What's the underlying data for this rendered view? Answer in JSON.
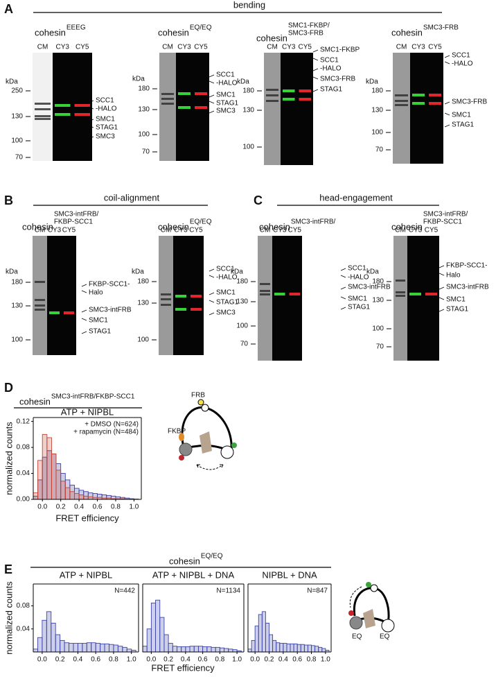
{
  "headers": [
    {
      "letter": "A",
      "heading": "bending"
    },
    {
      "letter": "B",
      "heading": "coil-alignment"
    },
    {
      "letter": "C",
      "heading": "head-engagement"
    },
    {
      "letter": "D",
      "title": {
        "base": "cohesin",
        "sup": [
          "SMC3-intFRB/FKBP-SCC1"
        ]
      }
    },
    {
      "letter": "E",
      "title": {
        "base": "cohesin",
        "sup": [
          "EQ/EQ"
        ]
      }
    }
  ],
  "gels": [
    {
      "title": {
        "base": "cohesin",
        "sup": [
          "EEEG"
        ]
      },
      "lanes": [
        "CM",
        "CY3",
        "CY5"
      ],
      "kda_label": "kDa",
      "markers": [
        250,
        130,
        100,
        70
      ],
      "bands": [
        "SCC1",
        "-HALO",
        "SMC1",
        "STAG1",
        "SMC3"
      ]
    },
    {
      "title": {
        "base": "cohesin",
        "sup": [
          "EQ/EQ"
        ]
      },
      "lanes": [
        "CM",
        "CY3",
        "CY5"
      ],
      "kda_label": "kDa",
      "markers": [
        180,
        130,
        100,
        70
      ],
      "bands": [
        "SCC1",
        "-HALO",
        "SMC1",
        "STAG1",
        "SMC3"
      ]
    },
    {
      "title": {
        "base": "cohesin",
        "sup": [
          "SMC1-FKBP/",
          "SMC3-FRB"
        ]
      },
      "lanes": [
        "CM",
        "CY3",
        "CY5"
      ],
      "kda_label": "kDa",
      "markers": [
        180,
        130,
        100
      ],
      "bands": [
        "SMC1-FKBP",
        "SCC1",
        "-HALO",
        "SMC3-FRB",
        "STAG1"
      ]
    },
    {
      "title": {
        "base": "cohesin",
        "sup": [
          "SMC3-FRB"
        ]
      },
      "lanes": [
        "CM",
        "CY3",
        "CY5"
      ],
      "kda_label": "kDa",
      "markers": [
        180,
        130,
        100,
        70
      ],
      "bands": [
        "SCC1",
        "-HALO",
        "SMC3-FRB",
        "SMC1",
        "STAG1"
      ]
    },
    {
      "title": {
        "base": "cohesin",
        "sup": [
          "SMC3-intFRB/",
          "FKBP-SCC1"
        ]
      },
      "lanes": [
        "CM",
        "CY3",
        "CY5"
      ],
      "kda_label": "kDa",
      "markers": [
        180,
        130,
        100
      ],
      "bands": [
        "FKBP-SCC1-",
        "Halo",
        "SMC3-intFRB",
        "SMC1",
        "STAG1"
      ]
    },
    {
      "title": {
        "base": "cohesin",
        "sup": [
          "EQ/EQ"
        ]
      },
      "lanes": [
        "CM",
        "CY3",
        "CY5"
      ],
      "kda_label": "kDa",
      "markers": [
        180,
        130,
        100
      ],
      "bands": [
        "SCC1",
        "-HALO",
        "SMC1",
        "STAG1",
        "SMC3"
      ]
    },
    {
      "title": {
        "base": "cohesin",
        "sup": [
          "SMC3-intFRB/"
        ]
      },
      "lanes": [
        "CM",
        "CY3",
        "CY5"
      ],
      "kda_label": "kDa",
      "markers": [
        180,
        130,
        100,
        70
      ],
      "bands": [
        "SCC1",
        "-HALO",
        "SMC3-intFRB",
        "SMC1",
        "STAG1"
      ]
    },
    {
      "title": {
        "base": "cohesin",
        "sup": [
          "SMC3-intFRB/",
          "FKBP-SCC1"
        ]
      },
      "lanes": [
        "CM",
        "CY3",
        "CY5"
      ],
      "kda_label": "kDa",
      "markers": [
        180,
        130,
        100,
        70
      ],
      "bands": [
        "FKBP-SCC1-",
        "Halo",
        "SMC3-intFRB",
        "SMC1",
        "STAG1"
      ]
    }
  ],
  "diagrams": {
    "d_labels": [
      "FRB",
      "FKBP"
    ],
    "e_labels": [
      "EQ",
      "EQ"
    ]
  },
  "chart_data": [
    {
      "type": "histogram",
      "subtitle": "ATP + NIPBL",
      "xlabel": "FRET efficiency",
      "ylabel": "normalized counts",
      "bins": [
        -0.1,
        -0.05,
        0,
        0.05,
        0.1,
        0.15,
        0.2,
        0.25,
        0.3,
        0.35,
        0.4,
        0.45,
        0.5,
        0.55,
        0.6,
        0.65,
        0.7,
        0.75,
        0.8,
        0.85,
        0.9,
        0.95,
        1,
        1.05
      ],
      "series": [
        {
          "name": "+ DMSO (N=624)",
          "color": "#3b3fa0",
          "values": [
            0.005,
            0.03,
            0.065,
            0.075,
            0.07,
            0.055,
            0.04,
            0.03,
            0.022,
            0.017,
            0.014,
            0.012,
            0.01,
            0.009,
            0.008,
            0.007,
            0.006,
            0.005,
            0.004,
            0.003,
            0.002,
            0.001,
            0.0005
          ]
        },
        {
          "name": "+ rapamycin (N=484)",
          "color": "#c8402f",
          "values": [
            0.01,
            0.06,
            0.1,
            0.095,
            0.07,
            0.045,
            0.028,
            0.018,
            0.012,
            0.009,
            0.007,
            0.005,
            0.004,
            0.003,
            0.003,
            0.002,
            0.002,
            0.001,
            0.001,
            0.001,
            0.0005,
            0,
            0
          ]
        }
      ],
      "xlim": [
        -0.1,
        1.08
      ],
      "ylim": [
        0,
        0.126
      ],
      "xticks": [
        {
          "value": 0,
          "label": "0.0"
        },
        0.2,
        0.4,
        0.6,
        0.8,
        {
          "value": 1,
          "label": "1.0"
        }
      ],
      "yticks": [
        {
          "value": 0,
          "label": "0.00"
        },
        0.04,
        0.08,
        0.12
      ]
    },
    {
      "type": "histogram",
      "subtitle": "ATP + NIPBL",
      "annotation": "N=442",
      "xlabel": "FRET efficiency",
      "ylabel": "normalized counts",
      "bins": [
        -0.1,
        -0.05,
        0,
        0.05,
        0.1,
        0.15,
        0.2,
        0.25,
        0.3,
        0.35,
        0.4,
        0.45,
        0.5,
        0.55,
        0.6,
        0.65,
        0.7,
        0.75,
        0.8,
        0.85,
        0.9,
        0.95,
        1,
        1.05
      ],
      "series": [
        {
          "color": "#3b44a8",
          "values": [
            0.005,
            0.025,
            0.055,
            0.07,
            0.05,
            0.03,
            0.02,
            0.016,
            0.015,
            0.015,
            0.015,
            0.015,
            0.016,
            0.016,
            0.015,
            0.014,
            0.014,
            0.013,
            0.012,
            0.01,
            0.008,
            0.005,
            0.003
          ]
        }
      ],
      "xlim": [
        -0.1,
        1.08
      ],
      "ylim": [
        0,
        0.118
      ],
      "xticks": [
        {
          "value": 0,
          "label": "0.0"
        },
        0.2,
        0.4,
        0.6,
        0.8,
        {
          "value": 1,
          "label": "1.0"
        }
      ],
      "yticks": [
        0.04,
        0.08
      ]
    },
    {
      "type": "histogram",
      "subtitle": "ATP + NIPBL + DNA",
      "annotation": "N=1134",
      "bins": [
        -0.1,
        -0.05,
        0,
        0.05,
        0.1,
        0.15,
        0.2,
        0.25,
        0.3,
        0.35,
        0.4,
        0.45,
        0.5,
        0.55,
        0.6,
        0.65,
        0.7,
        0.75,
        0.8,
        0.85,
        0.9,
        0.95,
        1,
        1.05
      ],
      "series": [
        {
          "color": "#3b44a8",
          "values": [
            0.01,
            0.04,
            0.085,
            0.09,
            0.06,
            0.03,
            0.015,
            0.01,
            0.009,
            0.009,
            0.009,
            0.01,
            0.01,
            0.01,
            0.009,
            0.009,
            0.008,
            0.008,
            0.007,
            0.006,
            0.005,
            0.004,
            0.002
          ]
        }
      ],
      "xlim": [
        -0.1,
        1.08
      ],
      "ylim": [
        0,
        0.118
      ],
      "xticks": [
        {
          "value": 0,
          "label": "0.0"
        },
        0.2,
        0.4,
        0.6,
        0.8,
        {
          "value": 1,
          "label": "1.0"
        }
      ]
    },
    {
      "type": "histogram",
      "subtitle": "NIPBL + DNA",
      "annotation": "N=847",
      "bins": [
        -0.1,
        -0.05,
        0,
        0.05,
        0.1,
        0.15,
        0.2,
        0.25,
        0.3,
        0.35,
        0.4,
        0.45,
        0.5,
        0.55,
        0.6,
        0.65,
        0.7,
        0.75,
        0.8,
        0.85,
        0.9,
        0.95,
        1,
        1.05
      ],
      "series": [
        {
          "color": "#3b44a8",
          "values": [
            0.005,
            0.02,
            0.045,
            0.065,
            0.07,
            0.05,
            0.03,
            0.02,
            0.016,
            0.015,
            0.015,
            0.014,
            0.014,
            0.014,
            0.013,
            0.013,
            0.012,
            0.012,
            0.011,
            0.01,
            0.008,
            0.006,
            0.003
          ]
        }
      ],
      "xlim": [
        -0.1,
        1.08
      ],
      "ylim": [
        0,
        0.118
      ],
      "xticks": [
        {
          "value": 0,
          "label": "0.0"
        },
        0.2,
        0.4,
        0.6,
        0.8,
        {
          "value": 1,
          "label": "1.0"
        }
      ]
    }
  ]
}
